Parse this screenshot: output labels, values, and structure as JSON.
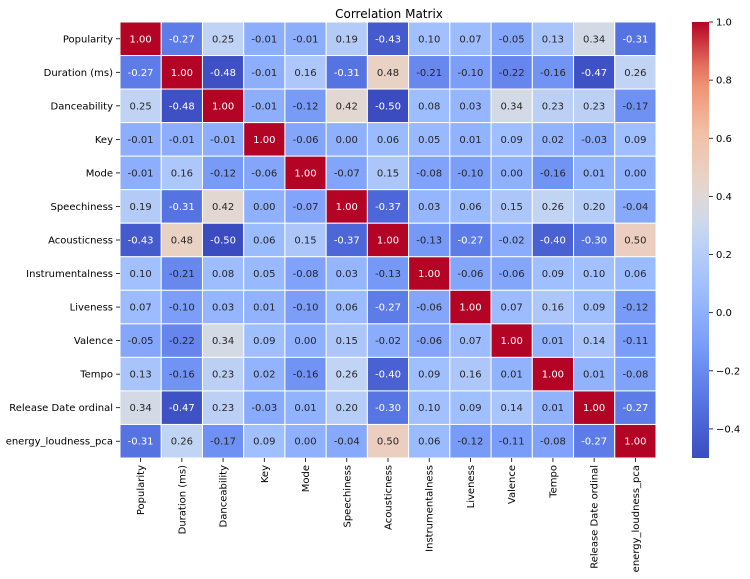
{
  "chart_data": {
    "type": "heatmap",
    "title": "Correlation Matrix",
    "xlabel": "",
    "ylabel": "",
    "labels": [
      "Popularity",
      "Duration (ms)",
      "Danceability",
      "Key",
      "Mode",
      "Speechiness",
      "Acousticness",
      "Instrumentalness",
      "Liveness",
      "Valence",
      "Tempo",
      "Release Date ordinal",
      "energy_loudness_pca"
    ],
    "matrix": [
      [
        1.0,
        -0.27,
        0.25,
        -0.01,
        -0.01,
        0.19,
        -0.43,
        0.1,
        0.07,
        -0.05,
        0.13,
        0.34,
        -0.31
      ],
      [
        -0.27,
        1.0,
        -0.48,
        -0.01,
        0.16,
        -0.31,
        0.48,
        -0.21,
        -0.1,
        -0.22,
        -0.16,
        -0.47,
        0.26
      ],
      [
        0.25,
        -0.48,
        1.0,
        -0.01,
        -0.12,
        0.42,
        -0.5,
        0.08,
        0.03,
        0.34,
        0.23,
        0.23,
        -0.17
      ],
      [
        -0.01,
        -0.01,
        -0.01,
        1.0,
        -0.06,
        0.0,
        0.06,
        0.05,
        0.01,
        0.09,
        0.02,
        -0.03,
        0.09
      ],
      [
        -0.01,
        0.16,
        -0.12,
        -0.06,
        1.0,
        -0.07,
        0.15,
        -0.08,
        -0.1,
        -0.0,
        -0.16,
        0.01,
        -0.0
      ],
      [
        0.19,
        -0.31,
        0.42,
        0.0,
        -0.07,
        1.0,
        -0.37,
        0.03,
        0.06,
        0.15,
        0.26,
        0.2,
        -0.04
      ],
      [
        -0.43,
        0.48,
        -0.5,
        0.06,
        0.15,
        -0.37,
        1.0,
        -0.13,
        -0.27,
        -0.02,
        -0.4,
        -0.3,
        0.5
      ],
      [
        0.1,
        -0.21,
        0.08,
        0.05,
        -0.08,
        0.03,
        -0.13,
        1.0,
        -0.06,
        -0.06,
        0.09,
        0.1,
        0.06
      ],
      [
        0.07,
        -0.1,
        0.03,
        0.01,
        -0.1,
        0.06,
        -0.27,
        -0.06,
        1.0,
        0.07,
        0.16,
        0.09,
        -0.12
      ],
      [
        -0.05,
        -0.22,
        0.34,
        0.09,
        -0.0,
        0.15,
        -0.02,
        -0.06,
        0.07,
        1.0,
        0.01,
        0.14,
        -0.11
      ],
      [
        0.13,
        -0.16,
        0.23,
        0.02,
        -0.16,
        0.26,
        -0.4,
        0.09,
        0.16,
        0.01,
        1.0,
        0.01,
        -0.08
      ],
      [
        0.34,
        -0.47,
        0.23,
        -0.03,
        0.01,
        0.2,
        -0.3,
        0.1,
        0.09,
        0.14,
        0.01,
        1.0,
        -0.27
      ],
      [
        -0.31,
        0.26,
        -0.17,
        0.09,
        -0.0,
        -0.04,
        0.5,
        0.06,
        -0.12,
        -0.11,
        -0.08,
        -0.27,
        1.0
      ]
    ],
    "colormap": "coolwarm",
    "value_range": [
      -0.5,
      1.0
    ],
    "colorbar_ticks": [
      "1.0",
      "0.8",
      "0.6",
      "0.4",
      "0.2",
      "0.0",
      "−0.2",
      "−0.4"
    ],
    "colorbar_tick_values": [
      1.0,
      0.8,
      0.6,
      0.4,
      0.2,
      0.0,
      -0.2,
      -0.4
    ],
    "cell_labels": true,
    "cell_border_color": "#ffffff"
  }
}
